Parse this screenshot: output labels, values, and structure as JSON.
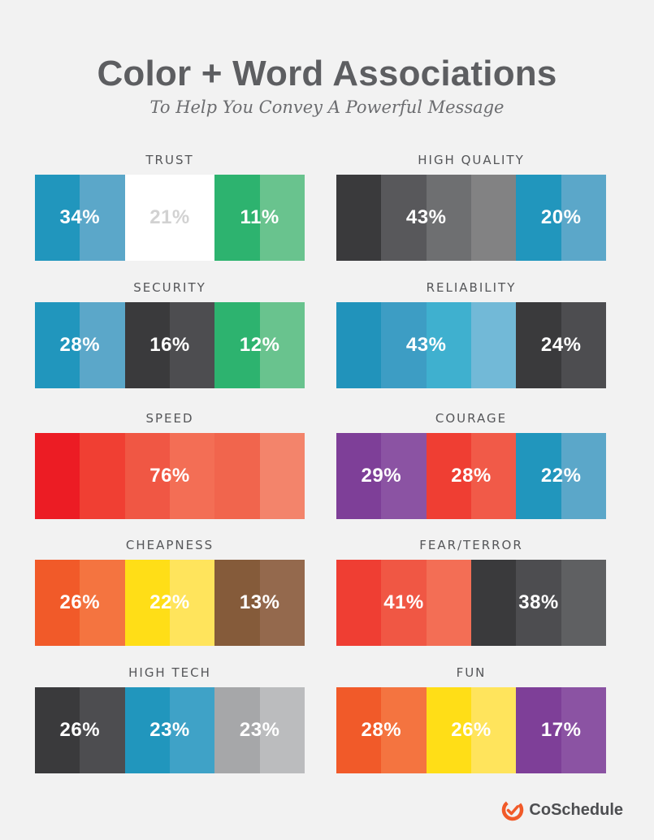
{
  "header": {
    "title": "Color + Word Associations",
    "subtitle": "To Help You Convey A Powerful Message"
  },
  "cards": [
    {
      "label": "TRUST",
      "colors": [
        "#2196bd",
        "#5ba7c9",
        "#ffffff",
        "#ffffff",
        "#2db36f",
        "#69c38e"
      ],
      "values": [
        {
          "text": "34%",
          "span": [
            0,
            2
          ],
          "light": false
        },
        {
          "text": "21%",
          "span": [
            2,
            2
          ],
          "light": true
        },
        {
          "text": "11%",
          "span": [
            4,
            2
          ],
          "light": false
        }
      ]
    },
    {
      "label": "HIGH QUALITY",
      "colors": [
        "#3a3a3c",
        "#58585b",
        "#6e6f71",
        "#828283",
        "#2196bd",
        "#5ba7c9"
      ],
      "values": [
        {
          "text": "43%",
          "span": [
            0,
            4
          ],
          "light": false
        },
        {
          "text": "20%",
          "span": [
            4,
            2
          ],
          "light": false
        }
      ]
    },
    {
      "label": "SECURITY",
      "colors": [
        "#2196bd",
        "#5ba7c9",
        "#3a3a3c",
        "#4d4d50",
        "#2db36f",
        "#69c38e"
      ],
      "values": [
        {
          "text": "28%",
          "span": [
            0,
            2
          ],
          "light": false
        },
        {
          "text": "16%",
          "span": [
            2,
            2
          ],
          "light": false
        },
        {
          "text": "12%",
          "span": [
            4,
            2
          ],
          "light": false
        }
      ]
    },
    {
      "label": "RELIABILITY",
      "colors": [
        "#2193bb",
        "#3d9dc4",
        "#3fb0cf",
        "#72b9d7",
        "#3a3a3c",
        "#4d4d50"
      ],
      "values": [
        {
          "text": "43%",
          "span": [
            0,
            4
          ],
          "light": false
        },
        {
          "text": "24%",
          "span": [
            4,
            2
          ],
          "light": false
        }
      ]
    },
    {
      "label": "SPEED",
      "colors": [
        "#ec1c24",
        "#f03f33",
        "#f05744",
        "#f36e55",
        "#f1654d",
        "#f3846b"
      ],
      "values": [
        {
          "text": "76%",
          "span": [
            0,
            6
          ],
          "light": false
        }
      ]
    },
    {
      "label": "COURAGE",
      "colors": [
        "#7e3f98",
        "#8b53a3",
        "#ef3e33",
        "#f15a48",
        "#2196bd",
        "#5ba7c9"
      ],
      "values": [
        {
          "text": "29%",
          "span": [
            0,
            2
          ],
          "light": false
        },
        {
          "text": "28%",
          "span": [
            2,
            2
          ],
          "light": false
        },
        {
          "text": "22%",
          "span": [
            4,
            2
          ],
          "light": false
        }
      ]
    },
    {
      "label": "CHEAPNESS",
      "colors": [
        "#f15a29",
        "#f47440",
        "#ffde17",
        "#ffe45c",
        "#855b3a",
        "#94694d"
      ],
      "values": [
        {
          "text": "26%",
          "span": [
            0,
            2
          ],
          "light": false
        },
        {
          "text": "22%",
          "span": [
            2,
            2
          ],
          "light": false
        },
        {
          "text": "13%",
          "span": [
            4,
            2
          ],
          "light": false
        }
      ]
    },
    {
      "label": "FEAR/TERROR",
      "colors": [
        "#ef3e33",
        "#f05744",
        "#f36e55",
        "#3a3a3c",
        "#4d4d50",
        "#5f6062"
      ],
      "values": [
        {
          "text": "41%",
          "span": [
            0,
            3
          ],
          "light": false
        },
        {
          "text": "38%",
          "span": [
            3,
            3
          ],
          "light": false
        }
      ]
    },
    {
      "label": "HIGH TECH",
      "colors": [
        "#3a3a3c",
        "#4d4d50",
        "#2196bd",
        "#3fa2c7",
        "#a6a7a9",
        "#bbbcbe"
      ],
      "values": [
        {
          "text": "26%",
          "span": [
            0,
            2
          ],
          "light": false
        },
        {
          "text": "23%",
          "span": [
            2,
            2
          ],
          "light": false
        },
        {
          "text": "23%",
          "span": [
            4,
            2
          ],
          "light": false
        }
      ]
    },
    {
      "label": "FUN",
      "colors": [
        "#f15a29",
        "#f47440",
        "#ffde17",
        "#ffe45c",
        "#7e3f98",
        "#8b53a3"
      ],
      "values": [
        {
          "text": "28%",
          "span": [
            0,
            2
          ],
          "light": false
        },
        {
          "text": "26%",
          "span": [
            2,
            2
          ],
          "light": false
        },
        {
          "text": "17%",
          "span": [
            4,
            2
          ],
          "light": false
        }
      ]
    }
  ],
  "brand": {
    "name": "CoSchedule",
    "icon": "coschedule-logo-icon",
    "color": "#f15a29"
  }
}
